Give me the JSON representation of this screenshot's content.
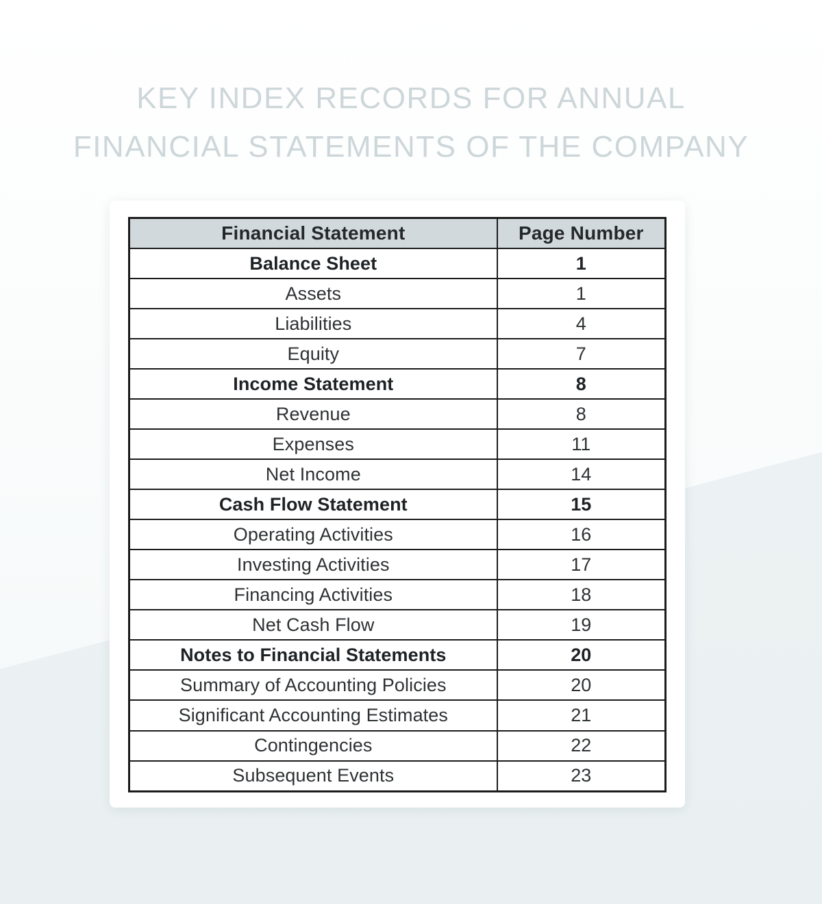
{
  "title": {
    "line1": "KEY INDEX RECORDS FOR ANNUAL",
    "line2": "FINANCIAL STATEMENTS OF THE COMPANY"
  },
  "colors": {
    "title_text": "#cdd6d9",
    "header_bg": "#d2d9dd",
    "table_border": "#1b1b1b",
    "card_bg": "#ffffff",
    "background_upper": "#fafcfc",
    "background_lower": "#eaf0f1",
    "cell_text": "#2e3133"
  },
  "table": {
    "columns": [
      "Financial Statement",
      "Page Number"
    ],
    "rows": [
      {
        "label": "Balance Sheet",
        "page": "1",
        "bold": true
      },
      {
        "label": "Assets",
        "page": "1",
        "bold": false
      },
      {
        "label": "Liabilities",
        "page": "4",
        "bold": false
      },
      {
        "label": "Equity",
        "page": "7",
        "bold": false
      },
      {
        "label": "Income Statement",
        "page": "8",
        "bold": true
      },
      {
        "label": "Revenue",
        "page": "8",
        "bold": false
      },
      {
        "label": "Expenses",
        "page": "11",
        "bold": false
      },
      {
        "label": "Net Income",
        "page": "14",
        "bold": false
      },
      {
        "label": "Cash Flow Statement",
        "page": "15",
        "bold": true
      },
      {
        "label": "Operating Activities",
        "page": "16",
        "bold": false
      },
      {
        "label": "Investing Activities",
        "page": "17",
        "bold": false
      },
      {
        "label": "Financing Activities",
        "page": "18",
        "bold": false
      },
      {
        "label": "Net Cash Flow",
        "page": "19",
        "bold": false
      },
      {
        "label": "Notes to Financial Statements",
        "page": "20",
        "bold": true
      },
      {
        "label": "Summary of Accounting Policies",
        "page": "20",
        "bold": false
      },
      {
        "label": "Significant Accounting Estimates",
        "page": "21",
        "bold": false
      },
      {
        "label": "Contingencies",
        "page": "22",
        "bold": false
      },
      {
        "label": "Subsequent Events",
        "page": "23",
        "bold": false
      }
    ]
  }
}
